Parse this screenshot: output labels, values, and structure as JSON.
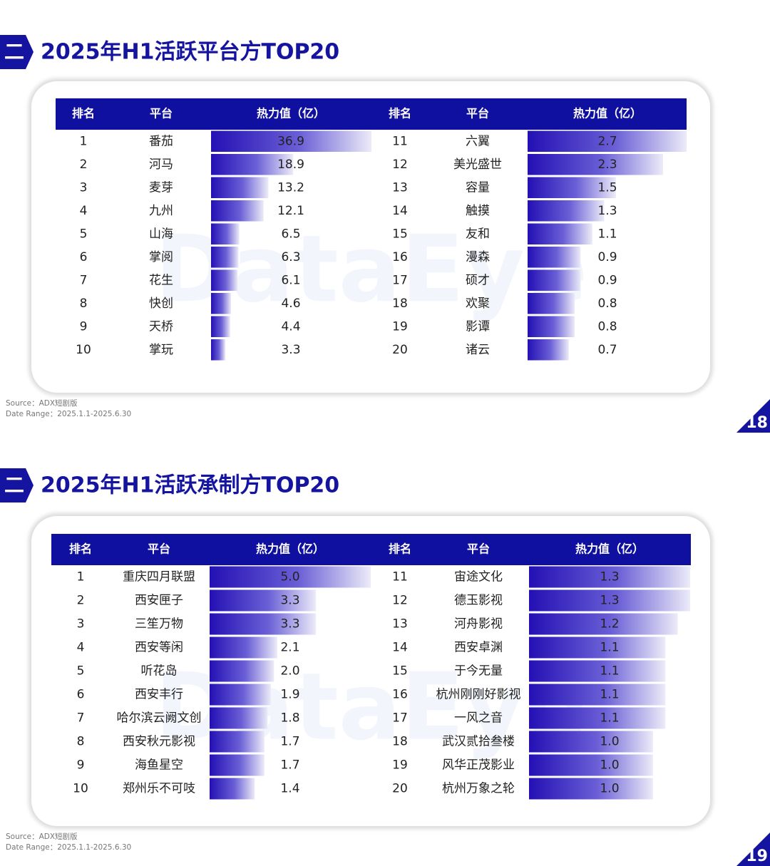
{
  "slides": [
    {
      "section": "二",
      "title": "2025年H1活跃平台方TOP20",
      "watermark": "DataEye",
      "headers": [
        "排名",
        "平台",
        "热力值（亿）",
        "排名",
        "平台",
        "热力值（亿）"
      ],
      "rows": [
        {
          "rank": 1,
          "name": "番茄",
          "value": 36.9
        },
        {
          "rank": 2,
          "name": "河马",
          "value": 18.9
        },
        {
          "rank": 3,
          "name": "麦芽",
          "value": 13.2
        },
        {
          "rank": 4,
          "name": "九州",
          "value": 12.1
        },
        {
          "rank": 5,
          "name": "山海",
          "value": 6.5
        },
        {
          "rank": 6,
          "name": "掌阅",
          "value": 6.3
        },
        {
          "rank": 7,
          "name": "花生",
          "value": 6.1
        },
        {
          "rank": 8,
          "name": "快创",
          "value": 4.6
        },
        {
          "rank": 9,
          "name": "天桥",
          "value": 4.4
        },
        {
          "rank": 10,
          "name": "掌玩",
          "value": 3.3
        },
        {
          "rank": 11,
          "name": "六翼",
          "value": 2.7
        },
        {
          "rank": 12,
          "name": "美光盛世",
          "value": 2.3
        },
        {
          "rank": 13,
          "name": "容量",
          "value": 1.5
        },
        {
          "rank": 14,
          "name": "触摸",
          "value": 1.3
        },
        {
          "rank": 15,
          "name": "友和",
          "value": 1.1
        },
        {
          "rank": 16,
          "name": "漫森",
          "value": 0.9
        },
        {
          "rank": 17,
          "name": "硕才",
          "value": 0.9
        },
        {
          "rank": 18,
          "name": "欢聚",
          "value": 0.8
        },
        {
          "rank": 19,
          "name": "影谭",
          "value": 0.8
        },
        {
          "rank": 20,
          "name": "诸云",
          "value": 0.7
        }
      ],
      "source": "Source：ADX短剧版",
      "date_range": "Date Range：2025.1.1-2025.6.30",
      "page": 18
    },
    {
      "section": "二",
      "title": "2025年H1活跃承制方TOP20",
      "watermark": "DataEye",
      "headers": [
        "排名",
        "平台",
        "热力值（亿）",
        "排名",
        "平台",
        "热力值（亿）"
      ],
      "rows": [
        {
          "rank": 1,
          "name": "重庆四月联盟",
          "value": 5,
          "value_label": "5.0"
        },
        {
          "rank": 2,
          "name": "西安匣子",
          "value": 3.3
        },
        {
          "rank": 3,
          "name": "三笙万物",
          "value": 3.3
        },
        {
          "rank": 4,
          "name": "西安等闲",
          "value": 2.1
        },
        {
          "rank": 5,
          "name": "听花岛",
          "value": 2,
          "value_label": "2.0"
        },
        {
          "rank": 6,
          "name": "西安丰行",
          "value": 1.9
        },
        {
          "rank": 7,
          "name": "哈尔滨云阙文创",
          "value": 1.8
        },
        {
          "rank": 8,
          "name": "西安秋元影视",
          "value": 1.7
        },
        {
          "rank": 9,
          "name": "海鱼星空",
          "value": 1.7
        },
        {
          "rank": 10,
          "name": "郑州乐不可吱",
          "value": 1.4
        },
        {
          "rank": 11,
          "name": "宙途文化",
          "value": 1.3
        },
        {
          "rank": 12,
          "name": "德玉影视",
          "value": 1.3
        },
        {
          "rank": 13,
          "name": "河舟影视",
          "value": 1.2
        },
        {
          "rank": 14,
          "name": "西安卓渊",
          "value": 1.1
        },
        {
          "rank": 15,
          "name": "于今无量",
          "value": 1.1
        },
        {
          "rank": 16,
          "name": "杭州刚刚好影视",
          "value": 1.1
        },
        {
          "rank": 17,
          "name": "一风之音",
          "value": 1.1
        },
        {
          "rank": 18,
          "name": "武汉贰拾叁楼",
          "value": 1,
          "value_label": "1.0"
        },
        {
          "rank": 19,
          "name": "风华正茂影业",
          "value": 1,
          "value_label": "1.0"
        },
        {
          "rank": 20,
          "name": "杭州万象之轮",
          "value": 1,
          "value_label": "1.0"
        }
      ],
      "source": "Source：ADX短剧版",
      "date_range": "Date Range：2025.1.1-2025.6.30",
      "page": 19
    }
  ]
}
